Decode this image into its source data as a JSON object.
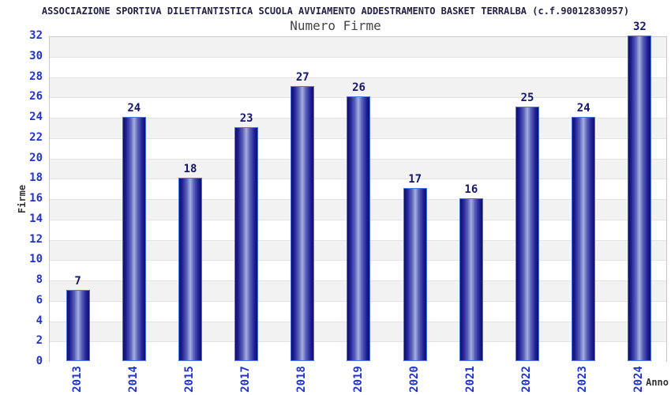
{
  "chart_data": {
    "type": "bar",
    "title": "ASSOCIAZIONE SPORTIVA DILETTANTISTICA SCUOLA AVVIAMENTO ADDESTRAMENTO BASKET TERRALBA (c.f.90012830957)",
    "subtitle": "Numero Firme",
    "xlabel": "Anno",
    "ylabel": "Firme",
    "categories": [
      "2013",
      "2014",
      "2015",
      "2017",
      "2018",
      "2019",
      "2020",
      "2021",
      "2022",
      "2023",
      "2024"
    ],
    "values": [
      7,
      24,
      18,
      23,
      27,
      26,
      17,
      16,
      25,
      24,
      32
    ],
    "ylim": [
      0,
      32
    ],
    "ytick_step": 2,
    "grid": "horizontal-bands-alternating",
    "legend": "none",
    "colors": {
      "title": "#222244",
      "subtitle": "#444444",
      "axis_label": "#333333",
      "tick_label": "#2233cc",
      "value_label": "#16166e",
      "bar_dark": "#0e0e68",
      "bar_light": "#a6aee2",
      "bar_border": "#4a72e0",
      "band_gray": "#f2f2f2",
      "band_white": "#ffffff",
      "gridline": "#e3e3e3",
      "plot_border": "#c8c8c8"
    }
  }
}
